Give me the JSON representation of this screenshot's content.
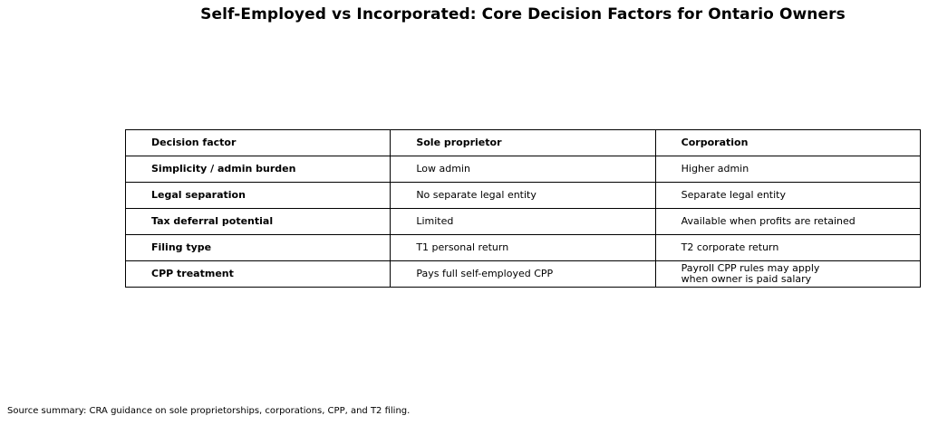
{
  "chart_data": {
    "type": "table",
    "title": "Self-Employed vs Incorporated: Core Decision Factors for Ontario Owners",
    "columns": [
      "Decision factor",
      "Sole proprietor",
      "Corporation"
    ],
    "rows": [
      [
        "Simplicity / admin burden",
        "Low admin",
        "Higher admin"
      ],
      [
        "Legal separation",
        "No separate legal entity",
        "Separate legal entity"
      ],
      [
        "Tax deferral potential",
        "Limited",
        "Available when profits are retained"
      ],
      [
        "Filing type",
        "T1 personal return",
        "T2 corporate return"
      ],
      [
        "CPP treatment",
        "Pays full self-employed CPP",
        "Payroll CPP rules may apply\nwhen owner is paid salary"
      ]
    ],
    "source_note": "Source summary: CRA guidance on sole proprietorships, corporations, CPP, and T2 filing.",
    "layout": {
      "text_color": "#000000",
      "border_color": "#000000",
      "background_color": "#ffffff",
      "header_bold": true,
      "first_column_bold": true
    }
  }
}
